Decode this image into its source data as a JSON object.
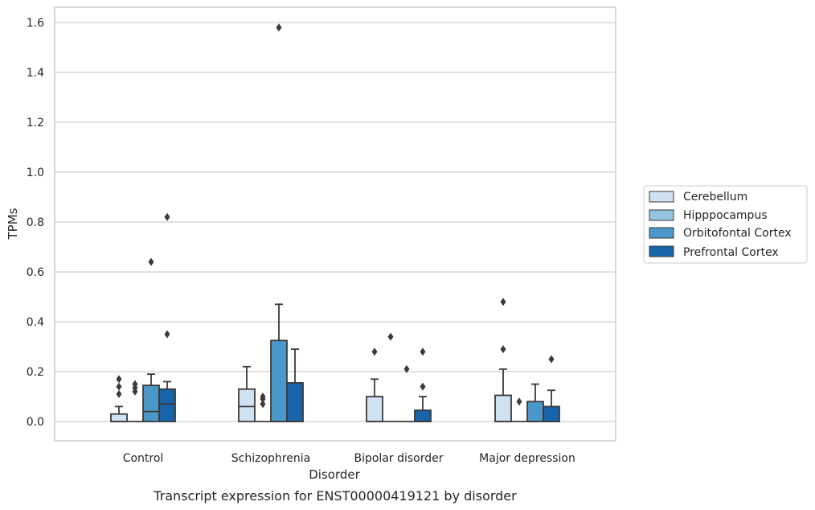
{
  "chart_data": {
    "type": "box",
    "caption": "Transcript expression for ENST00000419121 by disorder",
    "xlabel": "Disorder",
    "ylabel": "TPMs",
    "ylim": [
      -0.08,
      1.66
    ],
    "yticks": [
      "0.0",
      "0.2",
      "0.4",
      "0.6",
      "0.8",
      "1.0",
      "1.2",
      "1.4",
      "1.6"
    ],
    "ytick_values": [
      0.0,
      0.2,
      0.4,
      0.6,
      0.8,
      1.0,
      1.2,
      1.4,
      1.6
    ],
    "categories": [
      "Control",
      "Schizophrenia",
      "Bipolar disorder",
      "Major depression"
    ],
    "grid": true,
    "legend_position": "right",
    "colors": {
      "Cerebellum": "#d0e1f2",
      "Hipppocampus": "#94c4df",
      "Orbitofontal Cortex": "#4a98c9",
      "Prefrontal Cortex": "#1764ab",
      "line": "#3a3a3a",
      "grid": "#d0d0d0",
      "frame": "#cccccc"
    },
    "series": [
      {
        "name": "Cerebellum",
        "boxes": [
          {
            "q1": 0.0,
            "median": 0.0,
            "q3": 0.03,
            "whislo": 0.0,
            "whishi": 0.06,
            "fliers": [
              0.11,
              0.14,
              0.17
            ]
          },
          {
            "q1": 0.0,
            "median": 0.06,
            "q3": 0.13,
            "whislo": 0.0,
            "whishi": 0.22,
            "fliers": []
          },
          {
            "q1": 0.0,
            "median": 0.0,
            "q3": 0.1,
            "whislo": 0.0,
            "whishi": 0.17,
            "fliers": [
              0.28
            ]
          },
          {
            "q1": 0.0,
            "median": 0.0,
            "q3": 0.105,
            "whislo": 0.0,
            "whishi": 0.21,
            "fliers": [
              0.29,
              0.48
            ]
          }
        ]
      },
      {
        "name": "Hipppocampus",
        "boxes": [
          {
            "q1": 0.0,
            "median": 0.0,
            "q3": 0.0,
            "whislo": 0.0,
            "whishi": 0.0,
            "fliers": [
              0.12,
              0.135,
              0.15
            ]
          },
          {
            "q1": 0.0,
            "median": 0.0,
            "q3": 0.0,
            "whislo": 0.0,
            "whishi": 0.0,
            "fliers": [
              0.07,
              0.09,
              0.1
            ]
          },
          {
            "q1": 0.0,
            "median": 0.0,
            "q3": 0.0,
            "whislo": 0.0,
            "whishi": 0.0,
            "fliers": [
              0.34
            ]
          },
          {
            "q1": 0.0,
            "median": 0.0,
            "q3": 0.0,
            "whislo": 0.0,
            "whishi": 0.0,
            "fliers": [
              0.08
            ]
          }
        ]
      },
      {
        "name": "Orbitofontal Cortex",
        "boxes": [
          {
            "q1": 0.0,
            "median": 0.04,
            "q3": 0.145,
            "whislo": 0.0,
            "whishi": 0.19,
            "fliers": [
              0.64
            ]
          },
          {
            "q1": 0.0,
            "median": 0.0,
            "q3": 0.325,
            "whislo": 0.0,
            "whishi": 0.47,
            "fliers": [
              1.58
            ]
          },
          {
            "q1": 0.0,
            "median": 0.0,
            "q3": 0.0,
            "whislo": 0.0,
            "whishi": 0.0,
            "fliers": [
              0.21
            ]
          },
          {
            "q1": 0.0,
            "median": 0.0,
            "q3": 0.08,
            "whislo": 0.0,
            "whishi": 0.15,
            "fliers": []
          }
        ]
      },
      {
        "name": "Prefrontal Cortex",
        "boxes": [
          {
            "q1": 0.0,
            "median": 0.07,
            "q3": 0.13,
            "whislo": 0.0,
            "whishi": 0.16,
            "fliers": [
              0.35,
              0.82
            ]
          },
          {
            "q1": 0.0,
            "median": 0.0,
            "q3": 0.155,
            "whislo": 0.0,
            "whishi": 0.29,
            "fliers": []
          },
          {
            "q1": 0.0,
            "median": 0.0,
            "q3": 0.045,
            "whislo": 0.0,
            "whishi": 0.1,
            "fliers": [
              0.14,
              0.28
            ]
          },
          {
            "q1": 0.0,
            "median": 0.0,
            "q3": 0.06,
            "whislo": 0.0,
            "whishi": 0.125,
            "fliers": [
              0.25
            ]
          }
        ]
      }
    ]
  }
}
